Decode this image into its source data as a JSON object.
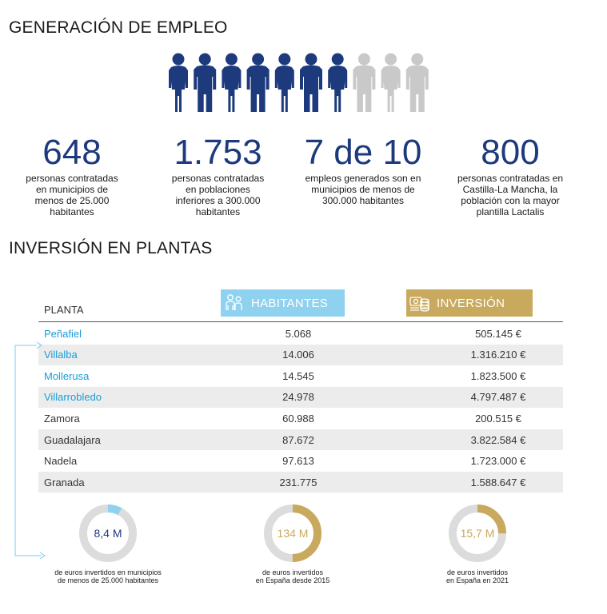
{
  "employment": {
    "title": "GENERACIÓN DE EMPLEO",
    "people": {
      "total": 10,
      "highlighted": 7,
      "highlight_color": "#1d3a7d",
      "muted_color": "#c9c9c9"
    },
    "stats": [
      {
        "number": "648",
        "text": "personas contratadas\nen municipios de\nmenos de 25.000\nhabitantes"
      },
      {
        "number": "1.753",
        "text": "personas contratadas\nen poblaciones\ninferiores a 300.000\nhabitantes"
      },
      {
        "number": "7 de 10",
        "text": "empleos generados son en\nmunicipios de menos de\n300.000 habitantes"
      },
      {
        "number": "800",
        "text": "personas contratadas en\nCastilla-La Mancha, la\npoblación con la mayor\nplantilla Lactalis"
      }
    ]
  },
  "investment": {
    "title": "INVERSIÓN EN PLANTAS",
    "columns": {
      "planta": "PLANTA",
      "habitantes": "HABITANTES",
      "inversion": "INVERSIÓN"
    },
    "colors": {
      "habitantes": "#8fd2f0",
      "inversion": "#c9a95e",
      "highlight_text": "#1a9dd7"
    },
    "rows": [
      {
        "planta": "Peñafiel",
        "habitantes": "5.068",
        "inversion": "505.145 €",
        "highlight": true
      },
      {
        "planta": "Villalba",
        "habitantes": "14.006",
        "inversion": "1.316.210 €",
        "highlight": true
      },
      {
        "planta": "Mollerusa",
        "habitantes": "14.545",
        "inversion": "1.823.500 €",
        "highlight": true
      },
      {
        "planta": "Villarrobledo",
        "habitantes": "24.978",
        "inversion": "4.797.487 €",
        "highlight": true
      },
      {
        "planta": "Zamora",
        "habitantes": "60.988",
        "inversion": "200.515 €",
        "highlight": false
      },
      {
        "planta": "Guadalajara",
        "habitantes": "87.672",
        "inversion": "3.822.584 €",
        "highlight": false
      },
      {
        "planta": "Nadela",
        "habitantes": "97.613",
        "inversion": "1.723.000 €",
        "highlight": false
      },
      {
        "planta": "Granada",
        "habitantes": "231.775",
        "inversion": "1.588.647 €",
        "highlight": false
      }
    ]
  },
  "donuts": [
    {
      "value_label": "8,4 M",
      "fraction": 0.08,
      "color": "#8fd2f0",
      "value_color": "#1d3a7d",
      "text": "de euros invertidos en municipios\nde menos de 25.000 habitantes"
    },
    {
      "value_label": "134 M",
      "fraction": 0.5,
      "color": "#c9a95e",
      "value_color": "#c9a95e",
      "text": "de euros invertidos\nen España desde 2015"
    },
    {
      "value_label": "15,7 M",
      "fraction": 0.25,
      "color": "#c9a95e",
      "value_color": "#c9a95e",
      "text": "de euros invertidos\nen España en 2021"
    }
  ]
}
